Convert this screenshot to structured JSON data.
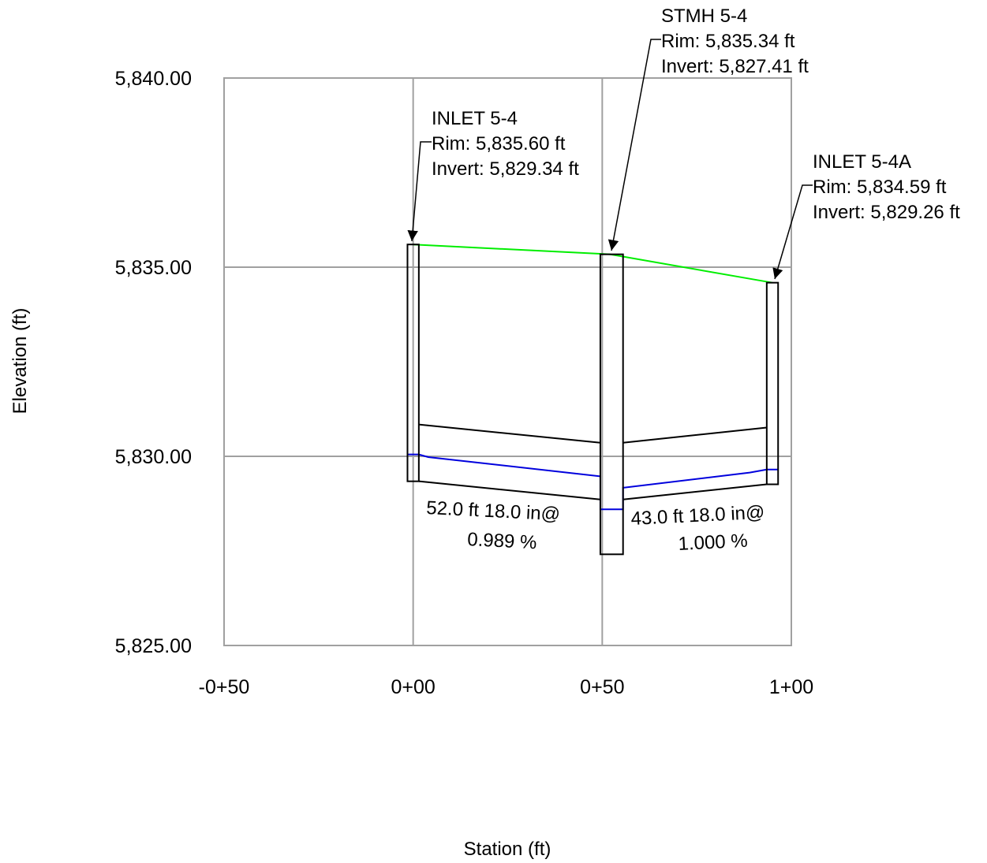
{
  "chart_data": {
    "type": "line",
    "xlabel": "Station (ft)",
    "ylabel": "Elevation (ft)",
    "xlim": [
      -50,
      100
    ],
    "ylim": [
      5825,
      5840
    ],
    "x_ticks": [
      -50,
      0,
      50,
      100
    ],
    "x_tick_labels": [
      "-0+50",
      "0+00",
      "0+50",
      "1+00"
    ],
    "y_ticks": [
      5825,
      5830,
      5835,
      5840
    ],
    "y_tick_labels": [
      "5,825.00",
      "5,830.00",
      "5,835.00",
      "5,840.00"
    ],
    "grid": true,
    "structures": [
      {
        "name": "INLET 5-4",
        "rim_label": "Rim: 5,835.60 ft",
        "invert_label": "Invert: 5,829.34 ft",
        "station_left": -1.5,
        "station_right": 1.5,
        "rim": 5835.6,
        "bottom": 5829.34
      },
      {
        "name": "STMH 5-4",
        "rim_label": "Rim: 5,835.34 ft",
        "invert_label": "Invert: 5,827.41 ft",
        "station_left": 49.5,
        "station_right": 55.5,
        "rim": 5835.34,
        "bottom": 5827.41
      },
      {
        "name": "INLET 5-4A",
        "rim_label": "Rim: 5,834.59 ft",
        "invert_label": "Invert: 5,829.26 ft",
        "station_left": 93.5,
        "station_right": 96.5,
        "rim": 5834.59,
        "bottom": 5829.26
      }
    ],
    "pipes": [
      {
        "length_label": "52.0 ft",
        "size_label": "18.0 in@",
        "slope_label": "0.989 %",
        "start_station": 1.5,
        "end_station": 49.5,
        "invert_start": 5829.34,
        "invert_end": 5828.86,
        "crown_start": 5830.84,
        "crown_end": 5830.36
      },
      {
        "length_label": "43.0 ft",
        "size_label": "18.0 in@",
        "slope_label": "1.000 %",
        "start_station": 55.5,
        "end_station": 93.5,
        "invert_start": 5828.86,
        "invert_end": 5829.26,
        "crown_start": 5830.36,
        "crown_end": 5830.76
      }
    ],
    "ground_line": {
      "color": "#00ee00",
      "x": [
        0,
        52,
        95
      ],
      "y": [
        5835.6,
        5835.34,
        5834.59
      ]
    },
    "hydraulic_grade_line": {
      "color": "#0000dd",
      "x": [
        -1.5,
        1.5,
        4,
        49.5,
        49.5,
        55.5,
        55.5,
        89,
        93.5,
        96.5
      ],
      "y": [
        5830.05,
        5830.05,
        5829.98,
        5829.47,
        5828.6,
        5828.6,
        5829.17,
        5829.57,
        5829.65,
        5829.65
      ]
    }
  },
  "colors": {
    "grid": "#a0a0a0",
    "structure": "#000000",
    "pipe": "#000000"
  }
}
